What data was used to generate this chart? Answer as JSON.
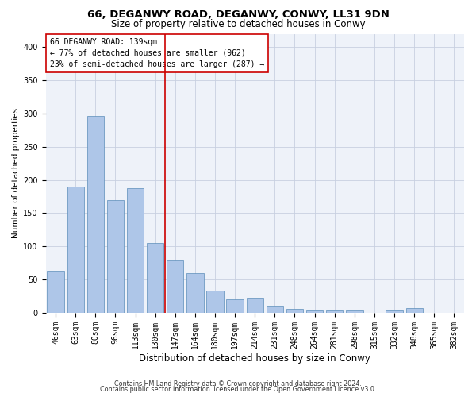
{
  "title1": "66, DEGANWY ROAD, DEGANWY, CONWY, LL31 9DN",
  "title2": "Size of property relative to detached houses in Conwy",
  "xlabel": "Distribution of detached houses by size in Conwy",
  "ylabel": "Number of detached properties",
  "footer1": "Contains HM Land Registry data © Crown copyright and database right 2024.",
  "footer2": "Contains public sector information licensed under the Open Government Licence v3.0.",
  "categories": [
    "46sqm",
    "63sqm",
    "80sqm",
    "96sqm",
    "113sqm",
    "130sqm",
    "147sqm",
    "164sqm",
    "180sqm",
    "197sqm",
    "214sqm",
    "231sqm",
    "248sqm",
    "264sqm",
    "281sqm",
    "298sqm",
    "315sqm",
    "332sqm",
    "348sqm",
    "365sqm",
    "382sqm"
  ],
  "values": [
    63,
    190,
    296,
    170,
    188,
    105,
    79,
    60,
    33,
    20,
    23,
    9,
    6,
    4,
    3,
    3,
    0,
    4,
    7,
    0,
    0
  ],
  "bar_color": "#aec6e8",
  "bar_edge_color": "#5b8db8",
  "vline_x": 6.0,
  "vline_color": "#cc0000",
  "annotation_title": "66 DEGANWY ROAD: 139sqm",
  "annotation_line1": "← 77% of detached houses are smaller (962)",
  "annotation_line2": "23% of semi-detached houses are larger (287) →",
  "annotation_box_color": "#ffffff",
  "annotation_box_edge": "#cc0000",
  "ylim": [
    0,
    420
  ],
  "yticks": [
    0,
    50,
    100,
    150,
    200,
    250,
    300,
    350,
    400
  ],
  "background_color": "#eef2f9",
  "title1_fontsize": 9.5,
  "title2_fontsize": 8.5,
  "xlabel_fontsize": 8.5,
  "ylabel_fontsize": 7.5,
  "tick_fontsize": 7.0,
  "ann_fontsize": 7.0,
  "footer_fontsize": 5.8
}
